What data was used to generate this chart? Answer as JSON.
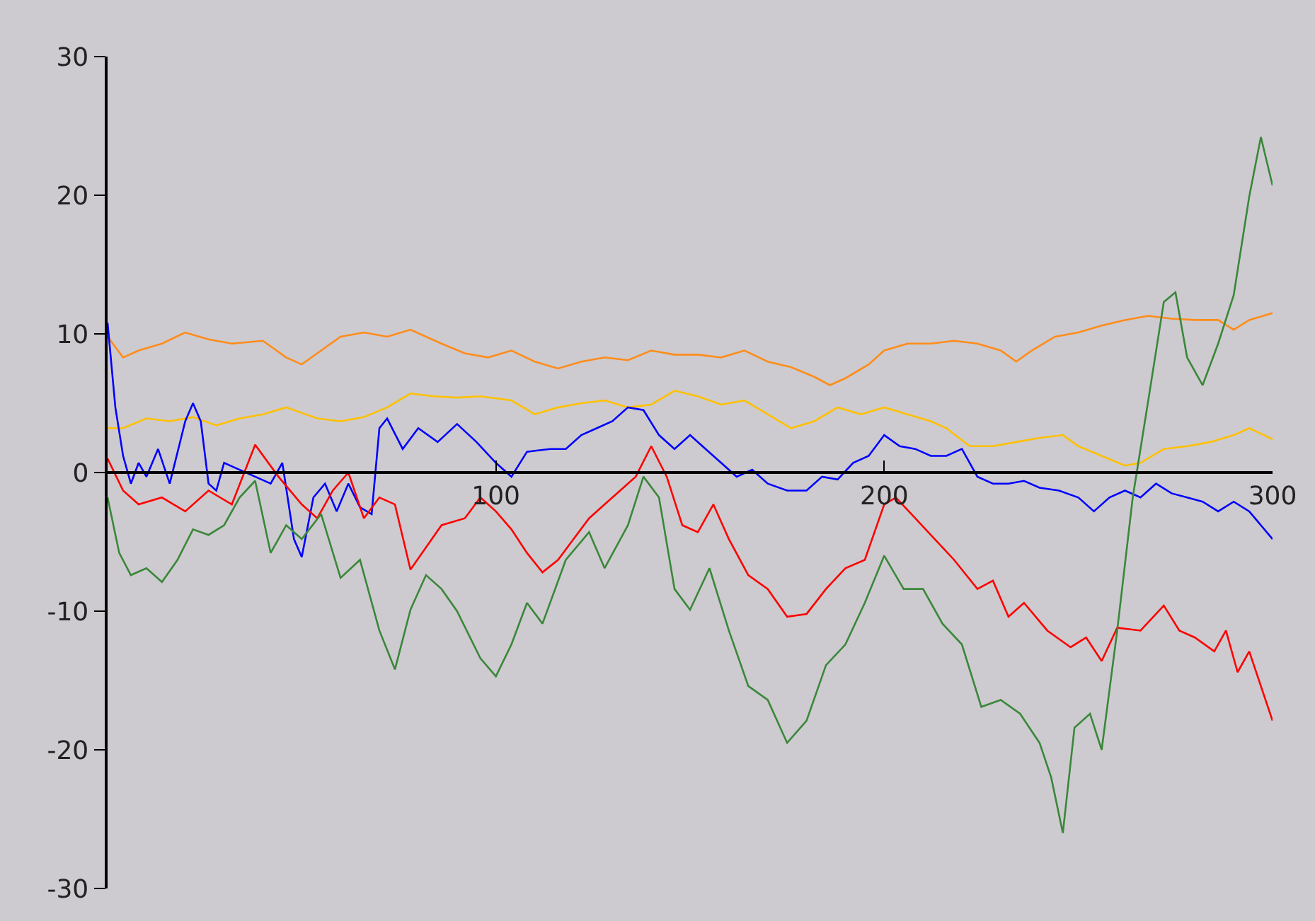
{
  "chart_data": {
    "type": "line",
    "line_style": "solid",
    "xlim": [
      0,
      300
    ],
    "xticks": [
      100,
      200,
      300
    ],
    "ylim": [
      -30,
      30
    ],
    "yticks": [
      -30,
      -20,
      -10,
      0,
      10,
      20,
      30
    ],
    "series": [
      {
        "color": "#ff8c1a",
        "x": [
          0,
          4,
          8,
          14,
          20,
          26,
          32,
          40,
          46,
          50,
          55,
          60,
          66,
          72,
          78,
          86,
          92,
          98,
          104,
          110,
          116,
          122,
          128,
          134,
          140,
          146,
          152,
          158,
          164,
          170,
          176,
          182,
          186,
          190,
          196,
          200,
          206,
          212,
          218,
          224,
          230,
          234,
          238,
          244,
          250,
          256,
          262,
          268,
          274,
          280,
          286,
          290,
          294,
          300
        ],
        "values": [
          9.8,
          8.3,
          8.8,
          9.3,
          10.1,
          9.6,
          9.3,
          9.5,
          8.3,
          7.8,
          8.8,
          9.8,
          10.1,
          9.8,
          10.3,
          9.3,
          8.6,
          8.3,
          8.8,
          8,
          7.5,
          8,
          8.3,
          8.1,
          8.8,
          8.5,
          8.5,
          8.3,
          8.8,
          8,
          7.6,
          6.9,
          6.3,
          6.8,
          7.8,
          8.8,
          9.3,
          9.3,
          9.5,
          9.3,
          8.8,
          8,
          8.8,
          9.8,
          10.1,
          10.6,
          11,
          11.3,
          11.1,
          11,
          11,
          10.3,
          11,
          11.5
        ]
      },
      {
        "color": "#ffc000",
        "x": [
          0,
          4,
          10,
          16,
          22,
          28,
          34,
          40,
          46,
          54,
          60,
          66,
          72,
          78,
          84,
          90,
          96,
          104,
          110,
          116,
          122,
          128,
          134,
          140,
          146,
          152,
          158,
          164,
          170,
          176,
          182,
          188,
          194,
          200,
          206,
          212,
          216,
          222,
          228,
          234,
          240,
          246,
          250,
          256,
          262,
          266,
          272,
          278,
          284,
          290,
          294,
          300
        ],
        "values": [
          3.2,
          3.2,
          3.9,
          3.7,
          4,
          3.4,
          3.9,
          4.2,
          4.7,
          3.9,
          3.7,
          4,
          4.7,
          5.7,
          5.5,
          5.4,
          5.5,
          5.2,
          4.2,
          4.7,
          5,
          5.2,
          4.7,
          4.9,
          5.9,
          5.5,
          4.9,
          5.2,
          4.2,
          3.2,
          3.7,
          4.7,
          4.2,
          4.7,
          4.2,
          3.7,
          3.2,
          1.9,
          1.9,
          2.2,
          2.5,
          2.7,
          1.9,
          1.2,
          0.5,
          0.7,
          1.7,
          1.9,
          2.2,
          2.7,
          3.2,
          2.4
        ]
      },
      {
        "color": "#0000ff",
        "x": [
          0,
          2,
          4,
          6,
          8,
          10,
          13,
          16,
          20,
          22,
          24,
          26,
          28,
          30,
          34,
          38,
          42,
          45,
          48,
          50,
          53,
          56,
          59,
          62,
          65,
          68,
          70,
          72,
          76,
          80,
          85,
          90,
          95,
          100,
          104,
          108,
          114,
          118,
          122,
          126,
          130,
          134,
          138,
          142,
          146,
          150,
          154,
          158,
          162,
          166,
          170,
          175,
          180,
          184,
          188,
          192,
          196,
          200,
          204,
          208,
          212,
          216,
          220,
          224,
          228,
          232,
          236,
          240,
          245,
          250,
          254,
          258,
          262,
          266,
          270,
          274,
          278,
          282,
          286,
          290,
          294,
          297,
          300
        ],
        "values": [
          10.8,
          4.7,
          1.2,
          -0.8,
          0.7,
          -0.3,
          1.7,
          -0.8,
          3.7,
          5,
          3.7,
          -0.8,
          -1.3,
          0.7,
          0.2,
          -0.3,
          -0.8,
          0.7,
          -4.8,
          -6.1,
          -1.8,
          -0.8,
          -2.8,
          -0.8,
          -2.5,
          -3,
          3.2,
          3.9,
          1.7,
          3.2,
          2.2,
          3.5,
          2.2,
          0.7,
          -0.3,
          1.5,
          1.7,
          1.7,
          2.7,
          3.2,
          3.7,
          4.7,
          4.5,
          2.7,
          1.7,
          2.7,
          1.7,
          0.7,
          -0.3,
          0.2,
          -0.8,
          -1.3,
          -1.3,
          -0.3,
          -0.5,
          0.7,
          1.2,
          2.7,
          1.9,
          1.7,
          1.2,
          1.2,
          1.7,
          -0.3,
          -0.8,
          -0.8,
          -0.6,
          -1.1,
          -1.3,
          -1.8,
          -2.8,
          -1.8,
          -1.3,
          -1.8,
          -0.8,
          -1.5,
          -1.8,
          -2.1,
          -2.8,
          -2.1,
          -2.8,
          -3.8,
          -4.8
        ]
      },
      {
        "color": "#ff0000",
        "x": [
          0,
          4,
          8,
          14,
          20,
          26,
          32,
          38,
          44,
          50,
          54,
          58,
          62,
          66,
          70,
          74,
          78,
          86,
          92,
          96,
          100,
          104,
          108,
          112,
          116,
          120,
          124,
          128,
          132,
          136,
          140,
          144,
          148,
          152,
          156,
          160,
          165,
          170,
          175,
          180,
          185,
          190,
          195,
          200,
          203,
          208,
          213,
          218,
          224,
          228,
          232,
          236,
          242,
          248,
          252,
          256,
          260,
          266,
          272,
          276,
          280,
          285,
          288,
          291,
          294,
          297,
          300
        ],
        "values": [
          1,
          -1.3,
          -2.3,
          -1.8,
          -2.8,
          -1.3,
          -2.3,
          2,
          -0.3,
          -2.3,
          -3.3,
          -1.3,
          0,
          -3.3,
          -1.8,
          -2.3,
          -7,
          -3.8,
          -3.3,
          -1.8,
          -2.8,
          -4.1,
          -5.8,
          -7.2,
          -6.3,
          -4.8,
          -3.3,
          -2.3,
          -1.3,
          -0.3,
          1.9,
          -0.3,
          -3.8,
          -4.3,
          -2.3,
          -4.8,
          -7.4,
          -8.4,
          -10.4,
          -10.2,
          -8.4,
          -6.9,
          -6.3,
          -2.3,
          -1.8,
          -3.3,
          -4.8,
          -6.3,
          -8.4,
          -7.8,
          -10.4,
          -9.4,
          -11.4,
          -12.6,
          -11.9,
          -13.6,
          -11.2,
          -11.4,
          -9.6,
          -11.4,
          -11.9,
          -12.9,
          -11.4,
          -14.4,
          -12.9,
          -15.4,
          -17.9
        ]
      },
      {
        "color": "#3a873a",
        "x": [
          0,
          3,
          6,
          10,
          14,
          18,
          22,
          26,
          30,
          34,
          38,
          42,
          46,
          50,
          55,
          60,
          65,
          70,
          74,
          78,
          82,
          86,
          90,
          96,
          100,
          104,
          108,
          112,
          118,
          124,
          128,
          134,
          138,
          142,
          146,
          150,
          155,
          160,
          165,
          170,
          175,
          180,
          185,
          190,
          195,
          200,
          205,
          210,
          215,
          220,
          225,
          230,
          235,
          240,
          243,
          246,
          249,
          253,
          256,
          260,
          264,
          268,
          272,
          275,
          278,
          282,
          286,
          290,
          294,
          297,
          300
        ],
        "values": [
          -1.8,
          -5.8,
          -7.4,
          -6.9,
          -7.9,
          -6.3,
          -4.1,
          -4.5,
          -3.8,
          -1.8,
          -0.6,
          -5.8,
          -3.8,
          -4.8,
          -3,
          -7.6,
          -6.3,
          -11.4,
          -14.2,
          -9.9,
          -7.4,
          -8.4,
          -10,
          -13.4,
          -14.7,
          -12.4,
          -9.4,
          -10.9,
          -6.3,
          -4.3,
          -6.9,
          -3.8,
          -0.3,
          -1.8,
          -8.4,
          -9.9,
          -6.9,
          -11.4,
          -15.4,
          -16.4,
          -19.5,
          -17.9,
          -13.9,
          -12.4,
          -9.4,
          -6,
          -8.4,
          -8.4,
          -10.9,
          -12.4,
          -16.9,
          -16.4,
          -17.4,
          -19.5,
          -22,
          -26,
          -18.4,
          -17.4,
          -20,
          -11.4,
          -1.8,
          5.2,
          12.3,
          13,
          8.3,
          6.3,
          9.3,
          12.8,
          19.9,
          24.2,
          20.7
        ]
      }
    ]
  }
}
